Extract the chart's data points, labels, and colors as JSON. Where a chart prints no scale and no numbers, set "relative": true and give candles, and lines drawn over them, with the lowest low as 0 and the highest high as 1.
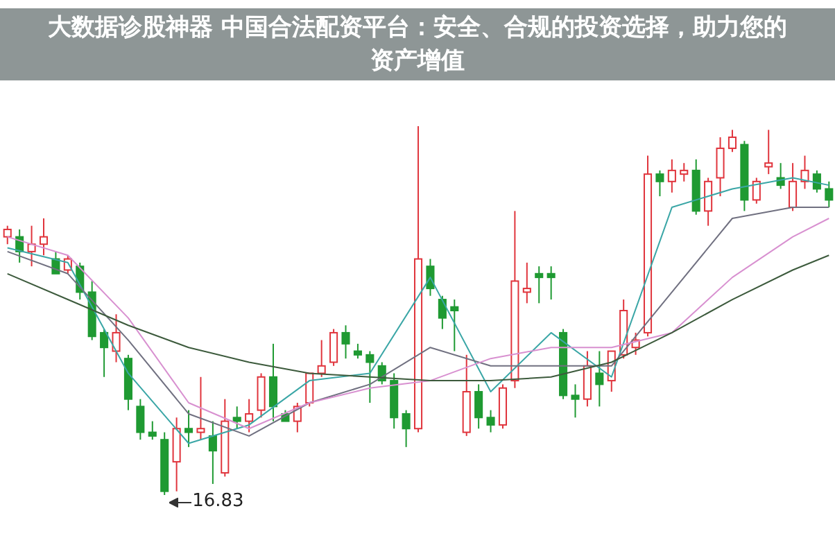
{
  "chart_data": {
    "type": "candlestick",
    "title": "大数据诊股神器 中国合法配资平台：安全、合规的投资选择，助力您的资产增值",
    "relative": true,
    "annotations": [
      "16.83"
    ],
    "categories": [
      null,
      null,
      null,
      null,
      null,
      null,
      null,
      null,
      null,
      null,
      null,
      null,
      null,
      null,
      null,
      null,
      null,
      null,
      null,
      null,
      null,
      null,
      null,
      null,
      null,
      null,
      null,
      null,
      null,
      null,
      null,
      null,
      null,
      null,
      null,
      null,
      null,
      null,
      null,
      null,
      null,
      null,
      null,
      null,
      null,
      null,
      null,
      null,
      null,
      null,
      null,
      null,
      null,
      null,
      null,
      null,
      null,
      null,
      null,
      null,
      null,
      null,
      null,
      null,
      null,
      null,
      null,
      null,
      null
    ],
    "ohlc": [
      [
        0.7,
        0.73,
        0.68,
        0.72
      ],
      [
        0.7,
        0.72,
        0.63,
        0.66
      ],
      [
        0.66,
        0.73,
        0.62,
        0.68
      ],
      [
        0.68,
        0.75,
        0.65,
        0.7
      ],
      [
        0.64,
        0.66,
        0.6,
        0.6
      ],
      [
        0.61,
        0.65,
        0.6,
        0.64
      ],
      [
        0.62,
        0.63,
        0.53,
        0.55
      ],
      [
        0.55,
        0.58,
        0.42,
        0.43
      ],
      [
        0.44,
        0.45,
        0.32,
        0.4
      ],
      [
        0.39,
        0.49,
        0.36,
        0.44
      ],
      [
        0.37,
        0.38,
        0.23,
        0.26
      ],
      [
        0.24,
        0.26,
        0.15,
        0.17
      ],
      [
        0.17,
        0.2,
        0.15,
        0.16
      ],
      [
        0.15,
        0.17,
        0.0,
        0.01
      ],
      [
        0.09,
        0.21,
        0.01,
        0.18
      ],
      [
        0.18,
        0.23,
        0.13,
        0.17
      ],
      [
        0.17,
        0.32,
        0.15,
        0.18
      ],
      [
        0.16,
        0.2,
        0.03,
        0.12
      ],
      [
        0.06,
        0.26,
        0.05,
        0.2
      ],
      [
        0.21,
        0.24,
        0.18,
        0.2
      ],
      [
        0.2,
        0.26,
        0.17,
        0.22
      ],
      [
        0.23,
        0.33,
        0.21,
        0.32
      ],
      [
        0.32,
        0.41,
        0.2,
        0.24
      ],
      [
        0.22,
        0.23,
        0.2,
        0.2
      ],
      [
        0.2,
        0.25,
        0.17,
        0.24
      ],
      [
        0.25,
        0.33,
        0.24,
        0.33
      ],
      [
        0.33,
        0.42,
        0.32,
        0.35
      ],
      [
        0.36,
        0.45,
        0.35,
        0.44
      ],
      [
        0.44,
        0.46,
        0.37,
        0.41
      ],
      [
        0.39,
        0.41,
        0.37,
        0.38
      ],
      [
        0.38,
        0.39,
        0.25,
        0.36
      ],
      [
        0.35,
        0.36,
        0.3,
        0.31
      ],
      [
        0.31,
        0.33,
        0.18,
        0.21
      ],
      [
        0.22,
        0.23,
        0.13,
        0.18
      ],
      [
        0.18,
        1.0,
        0.17,
        0.64
      ],
      [
        0.62,
        0.64,
        0.54,
        0.56
      ],
      [
        0.53,
        0.54,
        0.45,
        0.48
      ],
      [
        0.51,
        0.53,
        0.39,
        0.5
      ],
      [
        0.17,
        0.38,
        0.16,
        0.28
      ],
      [
        0.28,
        0.3,
        0.18,
        0.21
      ],
      [
        0.21,
        0.23,
        0.17,
        0.19
      ],
      [
        0.19,
        0.3,
        0.18,
        0.29
      ],
      [
        0.31,
        0.77,
        0.29,
        0.58
      ],
      [
        0.55,
        0.63,
        0.52,
        0.56
      ],
      [
        0.6,
        0.62,
        0.52,
        0.59
      ],
      [
        0.6,
        0.62,
        0.53,
        0.59
      ],
      [
        0.44,
        0.45,
        0.26,
        0.27
      ],
      [
        0.27,
        0.3,
        0.21,
        0.26
      ],
      [
        0.26,
        0.39,
        0.24,
        0.35
      ],
      [
        0.33,
        0.39,
        0.24,
        0.3
      ],
      [
        0.31,
        0.39,
        0.28,
        0.39
      ],
      [
        0.38,
        0.53,
        0.37,
        0.5
      ],
      [
        0.4,
        0.44,
        0.38,
        0.42
      ],
      [
        0.44,
        0.92,
        0.43,
        0.87
      ],
      [
        0.87,
        0.88,
        0.81,
        0.85
      ],
      [
        0.85,
        0.91,
        0.82,
        0.88
      ],
      [
        0.87,
        0.9,
        0.85,
        0.88
      ],
      [
        0.88,
        0.91,
        0.76,
        0.77
      ],
      [
        0.77,
        0.86,
        0.73,
        0.85
      ],
      [
        0.86,
        0.97,
        0.81,
        0.94
      ],
      [
        0.94,
        0.99,
        0.93,
        0.97
      ],
      [
        0.95,
        0.96,
        0.77,
        0.8
      ],
      [
        0.8,
        0.86,
        0.79,
        0.85
      ],
      [
        0.89,
        0.99,
        0.87,
        0.9
      ],
      [
        0.86,
        0.9,
        0.83,
        0.84
      ],
      [
        0.78,
        0.9,
        0.77,
        0.85
      ],
      [
        0.85,
        0.92,
        0.83,
        0.88
      ],
      [
        0.87,
        0.88,
        0.82,
        0.83
      ],
      [
        0.83,
        0.85,
        0.78,
        0.8
      ]
    ],
    "colors": [
      "#e0343c",
      "#1f9a32",
      "#e0343c",
      "#e0343c",
      "#1f9a32",
      "#e0343c",
      "#1f9a32",
      "#1f9a32",
      "#1f9a32",
      "#e0343c",
      "#1f9a32",
      "#1f9a32",
      "#1f9a32",
      "#1f9a32",
      "#e0343c",
      "#1f9a32",
      "#e0343c",
      "#1f9a32",
      "#e0343c",
      "#1f9a32",
      "#e0343c",
      "#e0343c",
      "#1f9a32",
      "#1f9a32",
      "#e0343c",
      "#e0343c",
      "#e0343c",
      "#e0343c",
      "#1f9a32",
      "#1f9a32",
      "#1f9a32",
      "#1f9a32",
      "#1f9a32",
      "#1f9a32",
      "#e0343c",
      "#1f9a32",
      "#1f9a32",
      "#1f9a32",
      "#e0343c",
      "#1f9a32",
      "#1f9a32",
      "#e0343c",
      "#e0343c",
      "#e0343c",
      "#1f9a32",
      "#1f9a32",
      "#1f9a32",
      "#1f9a32",
      "#e0343c",
      "#1f9a32",
      "#e0343c",
      "#e0343c",
      "#e0343c",
      "#e0343c",
      "#1f9a32",
      "#e0343c",
      "#e0343c",
      "#1f9a32",
      "#e0343c",
      "#e0343c",
      "#e0343c",
      "#1f9a32",
      "#e0343c",
      "#e0343c",
      "#1f9a32",
      "#e0343c",
      "#e0343c",
      "#1f9a32",
      "#1f9a32"
    ],
    "series": [
      {
        "type": "line",
        "color": "#3aa6a6",
        "values": [
          0.67,
          null,
          null,
          null,
          null,
          0.63,
          null,
          null,
          null,
          null,
          0.33,
          null,
          null,
          null,
          null,
          0.14,
          null,
          null,
          null,
          null,
          0.19,
          null,
          null,
          null,
          null,
          0.31,
          null,
          null,
          null,
          null,
          0.33,
          null,
          null,
          null,
          null,
          0.59,
          null,
          null,
          null,
          null,
          0.28,
          null,
          null,
          null,
          null,
          0.44,
          null,
          null,
          null,
          null,
          0.32,
          null,
          null,
          null,
          null,
          0.78,
          null,
          null,
          null,
          null,
          0.83,
          null,
          null,
          null,
          null,
          0.86,
          null,
          null,
          0.84
        ]
      },
      {
        "type": "line",
        "color": "#707080",
        "values": [
          0.66,
          null,
          null,
          null,
          null,
          0.6,
          null,
          null,
          null,
          null,
          0.42,
          null,
          null,
          null,
          null,
          0.22,
          null,
          null,
          null,
          null,
          0.16,
          null,
          null,
          null,
          null,
          0.25,
          null,
          null,
          null,
          null,
          0.3,
          null,
          null,
          null,
          null,
          0.4,
          null,
          null,
          null,
          null,
          0.35,
          null,
          null,
          null,
          null,
          0.35,
          null,
          null,
          null,
          null,
          0.35,
          null,
          null,
          null,
          null,
          0.55,
          null,
          null,
          null,
          null,
          0.75,
          null,
          null,
          null,
          null,
          0.78,
          null,
          null,
          0.78
        ]
      },
      {
        "type": "line",
        "color": "#d890d0",
        "values": [
          0.7,
          null,
          null,
          null,
          null,
          0.65,
          null,
          null,
          null,
          null,
          0.48,
          null,
          null,
          null,
          null,
          0.25,
          null,
          null,
          null,
          null,
          0.18,
          null,
          null,
          null,
          null,
          0.25,
          null,
          null,
          null,
          null,
          0.29,
          null,
          null,
          null,
          null,
          0.31,
          null,
          null,
          null,
          null,
          0.37,
          null,
          null,
          null,
          null,
          0.4,
          null,
          null,
          null,
          null,
          0.4,
          null,
          null,
          null,
          null,
          0.44,
          null,
          null,
          null,
          null,
          0.59,
          null,
          null,
          null,
          null,
          0.7,
          null,
          null,
          0.75
        ]
      },
      {
        "type": "line",
        "color": "#3c5a3c",
        "values": [
          0.6,
          null,
          null,
          null,
          null,
          0.53,
          null,
          null,
          null,
          null,
          0.46,
          null,
          null,
          null,
          null,
          0.4,
          null,
          null,
          null,
          null,
          0.36,
          null,
          null,
          null,
          null,
          0.33,
          null,
          null,
          null,
          null,
          0.32,
          null,
          null,
          null,
          null,
          0.31,
          null,
          null,
          null,
          null,
          0.31,
          null,
          null,
          null,
          null,
          0.32,
          null,
          null,
          null,
          null,
          0.36,
          null,
          null,
          null,
          null,
          0.44,
          null,
          null,
          null,
          null,
          0.53,
          null,
          null,
          null,
          null,
          0.61,
          null,
          null,
          0.65
        ]
      }
    ]
  }
}
